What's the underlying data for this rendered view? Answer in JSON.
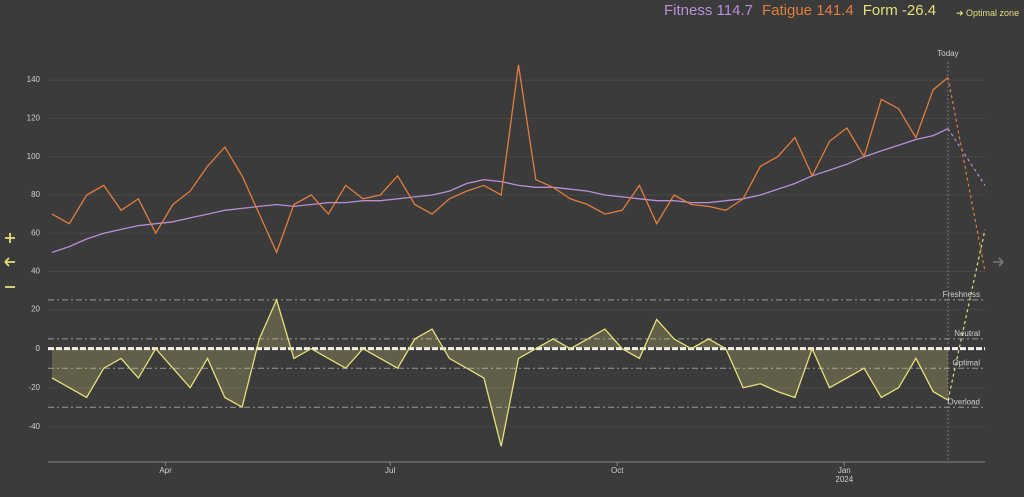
{
  "header": {
    "metrics": [
      {
        "label": "Fitness",
        "value": 114.7,
        "color": "#b98ed8"
      },
      {
        "label": "Fatigue",
        "value": 141.4,
        "color": "#e27d3c"
      },
      {
        "label": "Form",
        "value": -26.4,
        "color": "#e6df7a"
      }
    ],
    "link": "Optimal zone"
  },
  "chart_data": [
    {
      "type": "line",
      "x": [
        0,
        7,
        14,
        21,
        28,
        35,
        42,
        49,
        56,
        63,
        70,
        77,
        84,
        91,
        98,
        105,
        112,
        119,
        126,
        133,
        140,
        147,
        154,
        161,
        168,
        175,
        182,
        189,
        196,
        203,
        210,
        217,
        224,
        231,
        238,
        245,
        252,
        259,
        266,
        273,
        280,
        287,
        294,
        301,
        308,
        315,
        322,
        329,
        336,
        343,
        350,
        357,
        363
      ],
      "series": [
        {
          "name": "Fitness",
          "color": "#b98ed8",
          "values": [
            50,
            53,
            57,
            60,
            62,
            64,
            65,
            66,
            68,
            70,
            72,
            73,
            74,
            75,
            74,
            75,
            76,
            76,
            77,
            77,
            78,
            79,
            80,
            82,
            86,
            88,
            87,
            85,
            84,
            84,
            83,
            82,
            80,
            79,
            78,
            77,
            77,
            76,
            76,
            77,
            78,
            80,
            83,
            86,
            90,
            93,
            96,
            100,
            103,
            106,
            109,
            111,
            114.7
          ]
        },
        {
          "name": "Fatigue",
          "color": "#e27d3c",
          "values": [
            70,
            65,
            80,
            85,
            72,
            78,
            60,
            75,
            82,
            95,
            105,
            90,
            70,
            50,
            75,
            80,
            70,
            85,
            78,
            80,
            90,
            75,
            70,
            78,
            82,
            85,
            80,
            148,
            88,
            84,
            78,
            75,
            70,
            72,
            85,
            65,
            80,
            75,
            74,
            72,
            78,
            95,
            100,
            110,
            90,
            108,
            115,
            100,
            130,
            125,
            110,
            135,
            141.4
          ]
        }
      ],
      "projection": {
        "x": [
          363,
          378
        ],
        "series": [
          {
            "color": "#b98ed8",
            "values": [
              114.7,
              85
            ]
          },
          {
            "color": "#e27d3c",
            "values": [
              141.4,
              40
            ]
          }
        ]
      },
      "annotation": {
        "x": 363,
        "label": "Today"
      },
      "xlim": [
        0,
        378
      ],
      "ylim": [
        34,
        150
      ],
      "yticks": [
        40,
        60,
        80,
        100,
        120,
        140
      ],
      "grid": true
    },
    {
      "type": "area",
      "x": [
        0,
        7,
        14,
        21,
        28,
        35,
        42,
        49,
        56,
        63,
        70,
        77,
        84,
        91,
        98,
        105,
        112,
        119,
        126,
        133,
        140,
        147,
        154,
        161,
        168,
        175,
        182,
        189,
        196,
        203,
        210,
        217,
        224,
        231,
        238,
        245,
        252,
        259,
        266,
        273,
        280,
        287,
        294,
        301,
        308,
        315,
        322,
        329,
        336,
        343,
        350,
        357,
        363
      ],
      "series": [
        {
          "name": "Form",
          "color": "#e6df7a",
          "values": [
            -15,
            -20,
            -25,
            -10,
            -5,
            -15,
            0,
            -10,
            -20,
            -5,
            -25,
            -30,
            5,
            25,
            -5,
            0,
            -5,
            -10,
            0,
            -5,
            -10,
            5,
            10,
            -5,
            -10,
            -15,
            -50,
            -5,
            0,
            5,
            0,
            5,
            10,
            0,
            -5,
            15,
            5,
            0,
            5,
            0,
            -20,
            -18,
            -22,
            -25,
            0,
            -20,
            -15,
            -10,
            -25,
            -20,
            -5,
            -22,
            -26.4
          ]
        }
      ],
      "projection": {
        "x": [
          363,
          378
        ],
        "series": [
          {
            "color": "#e6df7a",
            "values": [
              -26.4,
              61
            ]
          }
        ]
      },
      "reference_lines": [
        {
          "value": 25,
          "label": "Freshness"
        },
        {
          "value": 5,
          "label": "Neutral"
        },
        {
          "value": -10,
          "label": "Optimal"
        },
        {
          "value": -30,
          "label": "Overload"
        }
      ],
      "xlim": [
        0,
        378
      ],
      "ylim": [
        -56,
        28
      ],
      "yticks": [
        -40,
        -20,
        0,
        20
      ],
      "xticks": [
        {
          "value": 46,
          "label": "Apr"
        },
        {
          "value": 137,
          "label": "Jul"
        },
        {
          "value": 229,
          "label": "Oct"
        },
        {
          "value": 321,
          "label": "Jan 2024"
        }
      ],
      "grid": true
    }
  ]
}
